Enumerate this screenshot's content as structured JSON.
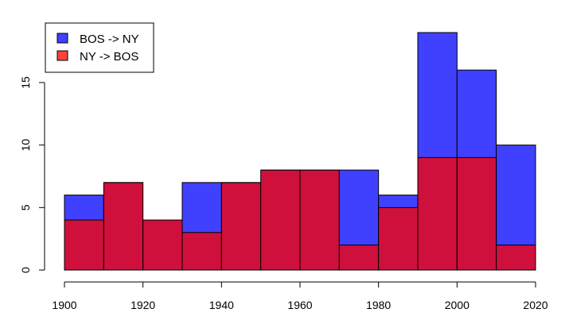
{
  "chart_data": {
    "type": "bar",
    "bin_edges": [
      1900,
      1910,
      1920,
      1930,
      1940,
      1950,
      1960,
      1970,
      1980,
      1990,
      2000,
      2010,
      2020
    ],
    "series": [
      {
        "name": "BOS -> NY",
        "color": "#4040ff",
        "values": [
          6,
          7,
          4,
          7,
          7,
          8,
          8,
          8,
          6,
          19,
          16,
          10
        ]
      },
      {
        "name": "NY -> BOS",
        "color": "#ff4040",
        "values": [
          4,
          7,
          4,
          3,
          7,
          8,
          8,
          2,
          5,
          9,
          9,
          2
        ]
      }
    ],
    "overlap_color": "#d0103c",
    "x_ticks": [
      "1900",
      "1920",
      "1940",
      "1960",
      "1980",
      "2000",
      "2020"
    ],
    "y_ticks": [
      "0",
      "5",
      "10",
      "15"
    ],
    "xlim": [
      1900,
      2020
    ],
    "ylim": [
      0,
      19
    ],
    "legend_position": "top-left",
    "grid": false
  }
}
